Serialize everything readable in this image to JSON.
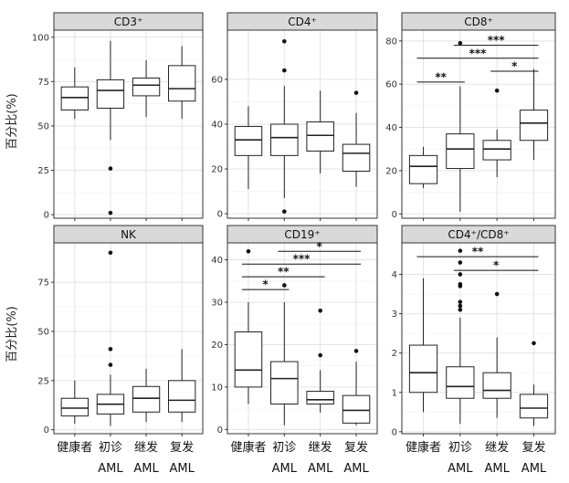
{
  "figure": {
    "y_axis_title": "百分比(%)",
    "categories": [
      "健康者",
      "初诊 AML",
      "继发 AML",
      "复发 AML"
    ],
    "category_lines": [
      [
        "健康者"
      ],
      [
        "初诊",
        "AML"
      ],
      [
        "继发",
        "AML"
      ],
      [
        "复发",
        "AML"
      ]
    ]
  },
  "chart_data": [
    {
      "type": "box",
      "title": "CD3⁺",
      "ylabel": "百分比(%)",
      "categories": [
        "健康者",
        "初诊 AML",
        "继发 AML",
        "复发 AML"
      ],
      "ylim": [
        -2,
        104
      ],
      "yticks": [
        0,
        25,
        50,
        75,
        100
      ],
      "grid": true,
      "boxes": [
        {
          "min": 54,
          "q1": 59,
          "median": 66,
          "q3": 72,
          "max": 83,
          "outliers": []
        },
        {
          "min": 42,
          "q1": 60,
          "median": 70,
          "q3": 76,
          "max": 98,
          "outliers": [
            26,
            1
          ]
        },
        {
          "min": 55,
          "q1": 67,
          "median": 73,
          "q3": 77,
          "max": 87,
          "outliers": []
        },
        {
          "min": 54,
          "q1": 64,
          "median": 71,
          "q3": 84,
          "max": 95,
          "outliers": []
        }
      ],
      "significance": []
    },
    {
      "type": "box",
      "title": "CD4⁺",
      "ylabel": "",
      "categories": [
        "健康者",
        "初诊 AML",
        "继发 AML",
        "复发 AML"
      ],
      "ylim": [
        -2,
        82
      ],
      "yticks": [
        0,
        20,
        40,
        60
      ],
      "grid": true,
      "boxes": [
        {
          "min": 11,
          "q1": 26,
          "median": 33,
          "q3": 39,
          "max": 48,
          "outliers": []
        },
        {
          "min": 7,
          "q1": 26,
          "median": 34,
          "q3": 40,
          "max": 57,
          "outliers": [
            77,
            64,
            1
          ]
        },
        {
          "min": 18,
          "q1": 28,
          "median": 35,
          "q3": 41,
          "max": 55,
          "outliers": []
        },
        {
          "min": 12,
          "q1": 19,
          "median": 27,
          "q3": 31,
          "max": 45,
          "outliers": [
            54
          ]
        }
      ],
      "significance": []
    },
    {
      "type": "box",
      "title": "CD8⁺",
      "ylabel": "",
      "categories": [
        "健康者",
        "初诊 AML",
        "继发 AML",
        "复发 AML"
      ],
      "ylim": [
        -2,
        85
      ],
      "yticks": [
        0,
        20,
        40,
        60,
        80
      ],
      "grid": true,
      "boxes": [
        {
          "min": 12,
          "q1": 14,
          "median": 22,
          "q3": 27,
          "max": 31,
          "outliers": []
        },
        {
          "min": 1,
          "q1": 21,
          "median": 30,
          "q3": 37,
          "max": 59,
          "outliers": [
            79
          ]
        },
        {
          "min": 17,
          "q1": 25,
          "median": 30,
          "q3": 34,
          "max": 39,
          "outliers": [
            57
          ]
        },
        {
          "min": 25,
          "q1": 34,
          "median": 42,
          "q3": 48,
          "max": 67,
          "outliers": []
        }
      ],
      "significance": [
        {
          "from": 0,
          "to": 1,
          "y": 61,
          "label": "**"
        },
        {
          "from": 0,
          "to": 3,
          "y": 72,
          "label": "***"
        },
        {
          "from": 1,
          "to": 3,
          "y": 78,
          "label": "***"
        },
        {
          "from": 2,
          "to": 3,
          "y": 66,
          "label": "*"
        }
      ]
    },
    {
      "type": "box",
      "title": "NK",
      "ylabel": "百分比(%)",
      "categories": [
        "健康者",
        "初诊 AML",
        "继发 AML",
        "复发 AML"
      ],
      "ylim": [
        -2,
        95
      ],
      "yticks": [
        0,
        25,
        50,
        75
      ],
      "grid": true,
      "boxes": [
        {
          "min": 3,
          "q1": 7,
          "median": 11,
          "q3": 16,
          "max": 25,
          "outliers": []
        },
        {
          "min": 2,
          "q1": 8,
          "median": 13,
          "q3": 18,
          "max": 28,
          "outliers": [
            90,
            41,
            33
          ]
        },
        {
          "min": 4,
          "q1": 9,
          "median": 16,
          "q3": 22,
          "max": 31,
          "outliers": []
        },
        {
          "min": 4,
          "q1": 9,
          "median": 15,
          "q3": 25,
          "max": 41,
          "outliers": []
        }
      ],
      "significance": []
    },
    {
      "type": "box",
      "title": "CD19⁺",
      "ylabel": "",
      "categories": [
        "健康者",
        "初诊 AML",
        "继发 AML",
        "复发 AML"
      ],
      "ylim": [
        -1,
        44
      ],
      "yticks": [
        0,
        10,
        20,
        30,
        40
      ],
      "grid": true,
      "boxes": [
        {
          "min": 6,
          "q1": 10,
          "median": 14,
          "q3": 23,
          "max": 30,
          "outliers": [
            42
          ]
        },
        {
          "min": 1,
          "q1": 6,
          "median": 12,
          "q3": 16,
          "max": 30,
          "outliers": [
            34
          ]
        },
        {
          "min": 4,
          "q1": 6,
          "median": 7,
          "q3": 9,
          "max": 14,
          "outliers": [
            28,
            17.5
          ]
        },
        {
          "min": 1,
          "q1": 1.5,
          "median": 4.5,
          "q3": 8,
          "max": 16,
          "outliers": [
            18.5
          ]
        }
      ],
      "significance": [
        {
          "from": 0,
          "to": 1,
          "y": 33,
          "label": "*"
        },
        {
          "from": 0,
          "to": 2,
          "y": 36,
          "label": "**"
        },
        {
          "from": 0,
          "to": 3,
          "y": 39,
          "label": "***"
        },
        {
          "from": 1,
          "to": 3,
          "y": 42,
          "label": "*"
        }
      ]
    },
    {
      "type": "box",
      "title": "CD4⁺/CD8⁺",
      "ylabel": "",
      "categories": [
        "健康者",
        "初诊 AML",
        "继发 AML",
        "复发 AML"
      ],
      "ylim": [
        -0.05,
        4.8
      ],
      "yticks": [
        0,
        1,
        2,
        3,
        4
      ],
      "grid": true,
      "boxes": [
        {
          "min": 0.5,
          "q1": 1.0,
          "median": 1.5,
          "q3": 2.2,
          "max": 3.9,
          "outliers": []
        },
        {
          "min": 0.2,
          "q1": 0.85,
          "median": 1.15,
          "q3": 1.65,
          "max": 2.9,
          "outliers": [
            4.6,
            4.3,
            4.0,
            3.75,
            3.7,
            3.3,
            3.2,
            3.1
          ]
        },
        {
          "min": 0.35,
          "q1": 0.85,
          "median": 1.05,
          "q3": 1.5,
          "max": 2.4,
          "outliers": [
            3.5
          ]
        },
        {
          "min": 0.15,
          "q1": 0.35,
          "median": 0.6,
          "q3": 0.95,
          "max": 1.2,
          "outliers": [
            2.25
          ]
        }
      ],
      "significance": [
        {
          "from": 0,
          "to": 3,
          "y": 4.45,
          "label": "**"
        },
        {
          "from": 1,
          "to": 3,
          "y": 4.1,
          "label": "*"
        }
      ]
    }
  ]
}
